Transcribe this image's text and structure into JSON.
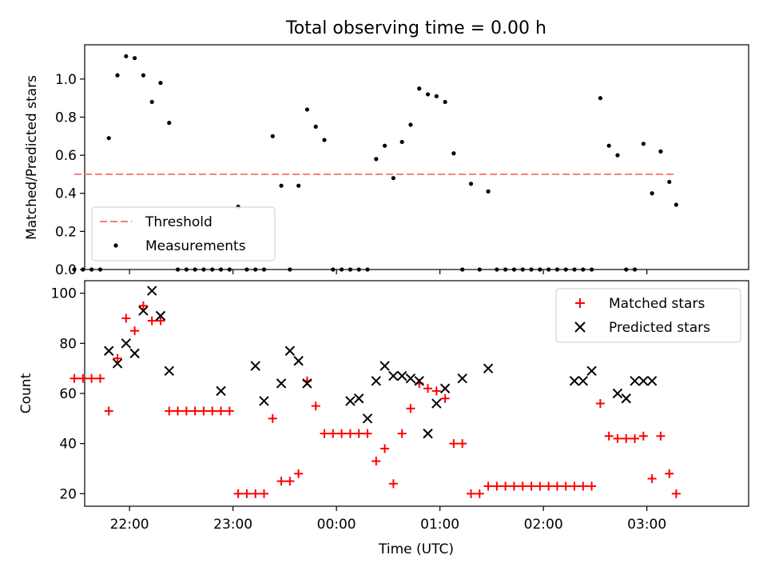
{
  "title": "Total observing time = 0.00 h",
  "colors": {
    "threshold": "#f08080",
    "matched": "#ff0000",
    "predicted": "#000000",
    "measurement": "#000000"
  },
  "chart_data": [
    {
      "type": "scatter",
      "ylabel": "Matched/Predicted stars",
      "ylim": [
        0,
        1.18
      ],
      "xlim": [
        "21:34",
        "03:59"
      ],
      "yticks": [
        "0.0",
        "0.2",
        "0.4",
        "0.6",
        "0.8",
        "1.0"
      ],
      "grid": false,
      "legend": {
        "placement": "lower-left",
        "entries": [
          "Threshold",
          "Measurements"
        ]
      },
      "threshold": {
        "name": "Threshold",
        "value": 0.5,
        "x": [
          "21:28",
          "03:17"
        ]
      },
      "series": [
        {
          "name": "Measurements",
          "x": [
            "21:28",
            "21:33",
            "21:38",
            "21:43",
            "21:48",
            "21:53",
            "21:58",
            "22:03",
            "22:08",
            "22:13",
            "22:18",
            "22:23",
            "22:28",
            "22:33",
            "22:38",
            "22:43",
            "22:48",
            "22:53",
            "22:58",
            "23:03",
            "23:08",
            "23:13",
            "23:18",
            "23:23",
            "23:28",
            "23:33",
            "23:38",
            "23:43",
            "23:48",
            "23:53",
            "23:58",
            "00:03",
            "00:08",
            "00:13",
            "00:18",
            "00:23",
            "00:28",
            "00:33",
            "00:38",
            "00:43",
            "00:48",
            "00:53",
            "00:58",
            "01:03",
            "01:08",
            "01:13",
            "01:18",
            "01:23",
            "01:28",
            "01:33",
            "01:38",
            "01:43",
            "01:48",
            "01:53",
            "01:58",
            "02:03",
            "02:08",
            "02:13",
            "02:18",
            "02:23",
            "02:28",
            "02:33",
            "02:38",
            "02:43",
            "02:48",
            "02:53",
            "02:58",
            "03:03",
            "03:08",
            "03:13",
            "03:17"
          ],
          "y": [
            0,
            0,
            0,
            0,
            0.69,
            1.02,
            1.12,
            1.11,
            1.02,
            0.88,
            0.98,
            0.77,
            0,
            0,
            0,
            0,
            0,
            0,
            0,
            0.33,
            0,
            0,
            0,
            0.7,
            0.44,
            0,
            0.44,
            0.84,
            0.75,
            0.68,
            0,
            0,
            0,
            0,
            0,
            0.58,
            0.65,
            0.48,
            0.67,
            0.76,
            0.95,
            0.92,
            0.91,
            0.88,
            0.61,
            0,
            0.45,
            0,
            0.41,
            0,
            0,
            0,
            0,
            0,
            0,
            0,
            0,
            0,
            0,
            0,
            0,
            0.9,
            0.65,
            0.6,
            0,
            0,
            0.66,
            0.4,
            0.62,
            0.46,
            0.34
          ]
        }
      ]
    },
    {
      "type": "scatter",
      "ylabel": "Count",
      "xlabel": "Time (UTC)",
      "ylim": [
        15,
        105
      ],
      "xlim": [
        "21:34",
        "03:59"
      ],
      "yticks": [
        "20",
        "40",
        "60",
        "80",
        "100"
      ],
      "xticks": [
        "22:00",
        "23:00",
        "00:00",
        "01:00",
        "02:00",
        "03:00"
      ],
      "grid": false,
      "legend": {
        "placement": "top-right",
        "entries": [
          "Matched stars",
          "Predicted stars"
        ]
      },
      "series": [
        {
          "name": "Matched stars",
          "marker": "+",
          "x": [
            "21:28",
            "21:33",
            "21:38",
            "21:43",
            "21:48",
            "21:53",
            "21:58",
            "22:03",
            "22:08",
            "22:13",
            "22:18",
            "22:23",
            "22:28",
            "22:33",
            "22:38",
            "22:43",
            "22:48",
            "22:53",
            "22:58",
            "23:03",
            "23:08",
            "23:13",
            "23:18",
            "23:23",
            "23:28",
            "23:33",
            "23:38",
            "23:43",
            "23:48",
            "23:53",
            "23:58",
            "00:03",
            "00:08",
            "00:13",
            "00:18",
            "00:23",
            "00:28",
            "00:33",
            "00:38",
            "00:43",
            "00:48",
            "00:53",
            "00:58",
            "01:03",
            "01:08",
            "01:13",
            "01:18",
            "01:23",
            "01:28",
            "01:33",
            "01:38",
            "01:43",
            "01:48",
            "01:53",
            "01:58",
            "02:03",
            "02:08",
            "02:13",
            "02:18",
            "02:23",
            "02:28",
            "02:33",
            "02:38",
            "02:43",
            "02:48",
            "02:53",
            "02:58",
            "03:03",
            "03:08",
            "03:13",
            "03:17"
          ],
          "y": [
            66,
            66,
            66,
            66,
            53,
            74,
            90,
            85,
            95,
            89,
            89,
            53,
            53,
            53,
            53,
            53,
            53,
            53,
            53,
            20,
            20,
            20,
            20,
            50,
            25,
            25,
            28,
            65,
            55,
            44,
            44,
            44,
            44,
            44,
            44,
            33,
            38,
            24,
            44,
            54,
            64,
            62,
            61,
            58,
            40,
            40,
            20,
            20,
            23,
            23,
            23,
            23,
            23,
            23,
            23,
            23,
            23,
            23,
            23,
            23,
            23,
            56,
            43,
            42,
            42,
            42,
            43,
            26,
            43,
            28,
            20
          ]
        },
        {
          "name": "Predicted stars",
          "marker": "x",
          "x": [
            "21:48",
            "21:53",
            "21:58",
            "22:03",
            "22:08",
            "22:13",
            "22:18",
            "22:23",
            "22:53",
            "23:13",
            "23:18",
            "23:28",
            "23:33",
            "23:38",
            "23:43",
            "00:08",
            "00:13",
            "00:18",
            "00:23",
            "00:28",
            "00:33",
            "00:38",
            "00:43",
            "00:48",
            "00:53",
            "00:58",
            "01:03",
            "01:13",
            "01:28",
            "02:18",
            "02:23",
            "02:28",
            "02:43",
            "02:48",
            "02:53",
            "02:58",
            "03:03"
          ],
          "y": [
            77,
            72,
            80,
            76,
            93,
            101,
            91,
            69,
            61,
            71,
            57,
            64,
            77,
            73,
            64,
            57,
            58,
            50,
            65,
            71,
            67,
            67,
            66,
            65,
            44,
            56,
            62,
            66,
            70,
            65,
            65,
            69,
            60,
            58,
            65,
            65,
            65
          ]
        }
      ]
    }
  ]
}
